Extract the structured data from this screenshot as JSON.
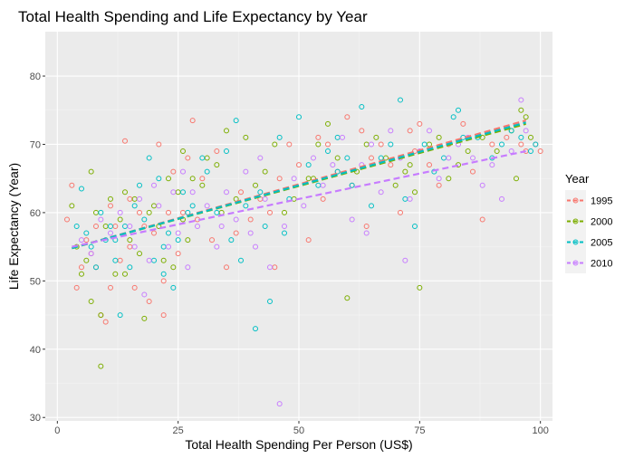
{
  "chart_data": {
    "type": "scatter",
    "title": "Total Health Spending and Life Expectancy by Year",
    "xlabel": "Total Health Spending Per Person (US$)",
    "ylabel": "Life Expectancy (Year)",
    "xlim": [
      -2.5,
      102.5
    ],
    "ylim": [
      29.5,
      86.5
    ],
    "x_ticks": [
      0,
      25,
      50,
      75,
      100
    ],
    "y_ticks": [
      30,
      40,
      50,
      60,
      70,
      80
    ],
    "grid": true,
    "legend": {
      "title": "Year",
      "placement": "right"
    },
    "series": [
      {
        "name": "1995",
        "color": "#F8766D",
        "trend": {
          "x": [
            3,
            97
          ],
          "y": [
            54.8,
            73.5
          ]
        },
        "points": [
          [
            2,
            59
          ],
          [
            3,
            64
          ],
          [
            4,
            49
          ],
          [
            5,
            52
          ],
          [
            6,
            56
          ],
          [
            7,
            54
          ],
          [
            8,
            52
          ],
          [
            8,
            58
          ],
          [
            9,
            45
          ],
          [
            10,
            44
          ],
          [
            11,
            49
          ],
          [
            11,
            61
          ],
          [
            12,
            58
          ],
          [
            13,
            53
          ],
          [
            14,
            70.5
          ],
          [
            15,
            55
          ],
          [
            15,
            62
          ],
          [
            16,
            49
          ],
          [
            17,
            60
          ],
          [
            18,
            58
          ],
          [
            19,
            47
          ],
          [
            20,
            57
          ],
          [
            21,
            70
          ],
          [
            22,
            45
          ],
          [
            22,
            50
          ],
          [
            23,
            60
          ],
          [
            24,
            66
          ],
          [
            25,
            54
          ],
          [
            26,
            60
          ],
          [
            27,
            68
          ],
          [
            28,
            73.5
          ],
          [
            29,
            59
          ],
          [
            30,
            65
          ],
          [
            32,
            56
          ],
          [
            33,
            69
          ],
          [
            35,
            52
          ],
          [
            37,
            57
          ],
          [
            38,
            63
          ],
          [
            40,
            59
          ],
          [
            42,
            62
          ],
          [
            44,
            60
          ],
          [
            46,
            65
          ],
          [
            48,
            70
          ],
          [
            50,
            67
          ],
          [
            52,
            56
          ],
          [
            54,
            71
          ],
          [
            56,
            70
          ],
          [
            58,
            66
          ],
          [
            60,
            74
          ],
          [
            61,
            64
          ],
          [
            63,
            72
          ],
          [
            65,
            68
          ],
          [
            67,
            70
          ],
          [
            69,
            67
          ],
          [
            71,
            60
          ],
          [
            73,
            72
          ],
          [
            75,
            73
          ],
          [
            77,
            67
          ],
          [
            79,
            64
          ],
          [
            81,
            70
          ],
          [
            84,
            73
          ],
          [
            86,
            66
          ],
          [
            88,
            59
          ],
          [
            90,
            70
          ],
          [
            93,
            71
          ],
          [
            96,
            70
          ],
          [
            97,
            69
          ],
          [
            99,
            70
          ],
          [
            100,
            69
          ],
          [
            45,
            52
          ],
          [
            55,
            62
          ],
          [
            64,
            58
          ],
          [
            74,
            69
          ]
        ]
      },
      {
        "name": "2000",
        "color": "#7CAE00",
        "trend": {
          "x": [
            3,
            97
          ],
          "y": [
            54.8,
            73.0
          ]
        },
        "points": [
          [
            3,
            61
          ],
          [
            4,
            55
          ],
          [
            5,
            51
          ],
          [
            6,
            53
          ],
          [
            7,
            66
          ],
          [
            7,
            47
          ],
          [
            8,
            60
          ],
          [
            9,
            37.5
          ],
          [
            9,
            45
          ],
          [
            10,
            58
          ],
          [
            11,
            62
          ],
          [
            12,
            51
          ],
          [
            13,
            59
          ],
          [
            14,
            63
          ],
          [
            15,
            56
          ],
          [
            16,
            62
          ],
          [
            17,
            54
          ],
          [
            18,
            44.5
          ],
          [
            19,
            60
          ],
          [
            20,
            61
          ],
          [
            21,
            58
          ],
          [
            22,
            53
          ],
          [
            23,
            65
          ],
          [
            24,
            52
          ],
          [
            25,
            63
          ],
          [
            26,
            69
          ],
          [
            27,
            56
          ],
          [
            28,
            65
          ],
          [
            30,
            64
          ],
          [
            31,
            68
          ],
          [
            33,
            67
          ],
          [
            35,
            72
          ],
          [
            37,
            62
          ],
          [
            39,
            71
          ],
          [
            41,
            64
          ],
          [
            43,
            66
          ],
          [
            45,
            70
          ],
          [
            47,
            60
          ],
          [
            49,
            62
          ],
          [
            52,
            65
          ],
          [
            54,
            70
          ],
          [
            56,
            73
          ],
          [
            58,
            68
          ],
          [
            60,
            47.5
          ],
          [
            62,
            66
          ],
          [
            64,
            70
          ],
          [
            66,
            71
          ],
          [
            68,
            68
          ],
          [
            70,
            64
          ],
          [
            72,
            66
          ],
          [
            74,
            63
          ],
          [
            75,
            49
          ],
          [
            77,
            70
          ],
          [
            79,
            71
          ],
          [
            81,
            65
          ],
          [
            83,
            67
          ],
          [
            85,
            69
          ],
          [
            88,
            71
          ],
          [
            91,
            69
          ],
          [
            94,
            72
          ],
          [
            95,
            65
          ],
          [
            96,
            75
          ],
          [
            97,
            74
          ],
          [
            98,
            71
          ],
          [
            14,
            51
          ],
          [
            26,
            59
          ],
          [
            34,
            60
          ],
          [
            53,
            65
          ],
          [
            73,
            67
          ]
        ]
      },
      {
        "name": "2005",
        "color": "#00BFC4",
        "trend": {
          "x": [
            3,
            97
          ],
          "y": [
            54.8,
            73.2
          ]
        },
        "points": [
          [
            4,
            58
          ],
          [
            5,
            63.5
          ],
          [
            6,
            57
          ],
          [
            7,
            55
          ],
          [
            8,
            52
          ],
          [
            9,
            60
          ],
          [
            10,
            56
          ],
          [
            11,
            58
          ],
          [
            12,
            53
          ],
          [
            13,
            45
          ],
          [
            14,
            58
          ],
          [
            15,
            52
          ],
          [
            16,
            61
          ],
          [
            17,
            64
          ],
          [
            18,
            59
          ],
          [
            19,
            68
          ],
          [
            20,
            53
          ],
          [
            21,
            65
          ],
          [
            22,
            51
          ],
          [
            23,
            57
          ],
          [
            24,
            49
          ],
          [
            25,
            56
          ],
          [
            26,
            63
          ],
          [
            27,
            60
          ],
          [
            28,
            61
          ],
          [
            30,
            68
          ],
          [
            31,
            66
          ],
          [
            33,
            60
          ],
          [
            35,
            69
          ],
          [
            37,
            73.5
          ],
          [
            38,
            53
          ],
          [
            39,
            61
          ],
          [
            41,
            43
          ],
          [
            42,
            63
          ],
          [
            43,
            58
          ],
          [
            44,
            47
          ],
          [
            46,
            71
          ],
          [
            48,
            62
          ],
          [
            50,
            74
          ],
          [
            52,
            67
          ],
          [
            54,
            64
          ],
          [
            56,
            69
          ],
          [
            58,
            71
          ],
          [
            60,
            68
          ],
          [
            61,
            64
          ],
          [
            63,
            75.5
          ],
          [
            65,
            61
          ],
          [
            67,
            68
          ],
          [
            69,
            70
          ],
          [
            71,
            76.5
          ],
          [
            72,
            62
          ],
          [
            74,
            58
          ],
          [
            76,
            70
          ],
          [
            78,
            66
          ],
          [
            80,
            68
          ],
          [
            82,
            74
          ],
          [
            84,
            71
          ],
          [
            87,
            71
          ],
          [
            90,
            68
          ],
          [
            92,
            70
          ],
          [
            94,
            72
          ],
          [
            96,
            71
          ],
          [
            98,
            69
          ],
          [
            99,
            70
          ],
          [
            12,
            56
          ],
          [
            22,
            55
          ],
          [
            36,
            56
          ],
          [
            47,
            57
          ],
          [
            58,
            66
          ],
          [
            83,
            75
          ]
        ]
      },
      {
        "name": "2010",
        "color": "#C77CFF",
        "trend": {
          "x": [
            3,
            97
          ],
          "y": [
            55.0,
            69.0
          ]
        },
        "points": [
          [
            5,
            56
          ],
          [
            7,
            54
          ],
          [
            9,
            59
          ],
          [
            11,
            57
          ],
          [
            13,
            60
          ],
          [
            15,
            58
          ],
          [
            17,
            62
          ],
          [
            18,
            48
          ],
          [
            19,
            53
          ],
          [
            20,
            64
          ],
          [
            21,
            61
          ],
          [
            23,
            55
          ],
          [
            24,
            63
          ],
          [
            25,
            57
          ],
          [
            26,
            66
          ],
          [
            27,
            52
          ],
          [
            29,
            58
          ],
          [
            31,
            61
          ],
          [
            33,
            55
          ],
          [
            35,
            63
          ],
          [
            37,
            59
          ],
          [
            39,
            66
          ],
          [
            40,
            57
          ],
          [
            42,
            68
          ],
          [
            43,
            62
          ],
          [
            44,
            52
          ],
          [
            46,
            32
          ],
          [
            47,
            58
          ],
          [
            49,
            65
          ],
          [
            51,
            61
          ],
          [
            53,
            68
          ],
          [
            55,
            64
          ],
          [
            57,
            67
          ],
          [
            59,
            71
          ],
          [
            61,
            59
          ],
          [
            63,
            67
          ],
          [
            65,
            70
          ],
          [
            67,
            63
          ],
          [
            69,
            72
          ],
          [
            71,
            68
          ],
          [
            72,
            53
          ],
          [
            73,
            62
          ],
          [
            75,
            69
          ],
          [
            77,
            72
          ],
          [
            79,
            65
          ],
          [
            81,
            68
          ],
          [
            83,
            70
          ],
          [
            85,
            71
          ],
          [
            88,
            64
          ],
          [
            90,
            67
          ],
          [
            92,
            62
          ],
          [
            94,
            69
          ],
          [
            96,
            76.5
          ],
          [
            97,
            72
          ],
          [
            16,
            55
          ],
          [
            28,
            63
          ],
          [
            41,
            55
          ],
          [
            64,
            57
          ],
          [
            86,
            68
          ],
          [
            34,
            58
          ]
        ]
      }
    ]
  }
}
